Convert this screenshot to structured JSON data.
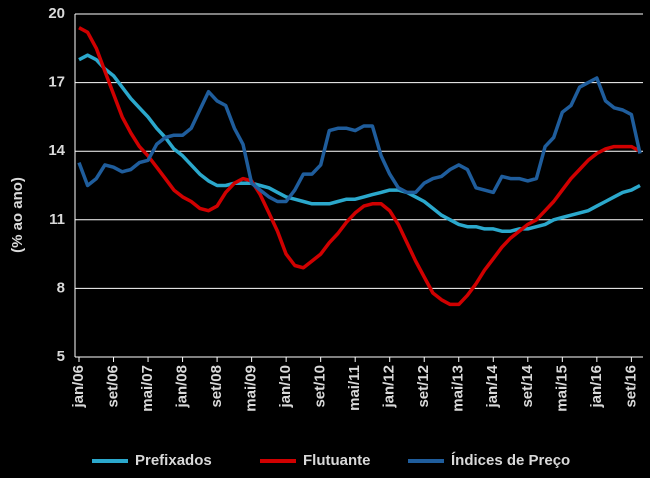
{
  "chart_data": {
    "type": "line",
    "y_label": "(% ao ano)",
    "categories": [
      "jan/06",
      null,
      null,
      null,
      "set/06",
      null,
      null,
      null,
      "mai/07",
      null,
      null,
      null,
      "jan/08",
      null,
      null,
      null,
      "set/08",
      null,
      null,
      null,
      "mai/09",
      null,
      null,
      null,
      "jan/10",
      null,
      null,
      null,
      "set/10",
      null,
      null,
      null,
      "mai/11",
      null,
      null,
      null,
      "jan/12",
      null,
      null,
      null,
      "set/12",
      null,
      null,
      null,
      "mai/13",
      null,
      null,
      null,
      "jan/14",
      null,
      null,
      null,
      "set/14",
      null,
      null,
      null,
      "mai/15",
      null,
      null,
      null,
      "jan/16",
      null,
      null,
      null,
      "set/16",
      null
    ],
    "series": [
      {
        "name": "Prefixados",
        "color": "#2ba8cc",
        "values": [
          18.0,
          18.2,
          18.0,
          17.6,
          17.3,
          16.8,
          16.3,
          15.9,
          15.5,
          15.0,
          14.6,
          14.1,
          13.8,
          13.4,
          13.0,
          12.7,
          12.5,
          12.5,
          12.6,
          12.6,
          12.6,
          12.5,
          12.4,
          12.2,
          12.0,
          11.9,
          11.8,
          11.7,
          11.7,
          11.7,
          11.8,
          11.9,
          11.9,
          12.0,
          12.1,
          12.2,
          12.3,
          12.3,
          12.2,
          12.0,
          11.8,
          11.5,
          11.2,
          11.0,
          10.8,
          10.7,
          10.7,
          10.6,
          10.6,
          10.5,
          10.5,
          10.6,
          10.6,
          10.7,
          10.8,
          11.0,
          11.1,
          11.2,
          11.3,
          11.4,
          11.6,
          11.8,
          12.0,
          12.2,
          12.3,
          12.5
        ]
      },
      {
        "name": "Flutuante",
        "color": "#d00000",
        "values": [
          19.4,
          19.2,
          18.5,
          17.5,
          16.5,
          15.5,
          14.8,
          14.2,
          13.8,
          13.3,
          12.8,
          12.3,
          12.0,
          11.8,
          11.5,
          11.4,
          11.6,
          12.2,
          12.6,
          12.8,
          12.7,
          12.1,
          11.3,
          10.5,
          9.5,
          9.0,
          8.9,
          9.2,
          9.5,
          10.0,
          10.4,
          10.9,
          11.3,
          11.6,
          11.7,
          11.7,
          11.4,
          10.8,
          10.0,
          9.2,
          8.5,
          7.8,
          7.5,
          7.3,
          7.3,
          7.7,
          8.2,
          8.8,
          9.3,
          9.8,
          10.2,
          10.5,
          10.8,
          11.0,
          11.4,
          11.8,
          12.3,
          12.8,
          13.2,
          13.6,
          13.9,
          14.1,
          14.2,
          14.2,
          14.2,
          14.0
        ]
      },
      {
        "name": "Índices de Preço",
        "color": "#1f5d9c",
        "values": [
          13.5,
          12.5,
          12.8,
          13.4,
          13.3,
          13.1,
          13.2,
          13.5,
          13.6,
          14.3,
          14.6,
          14.7,
          14.7,
          15.0,
          15.8,
          16.6,
          16.2,
          16.0,
          15.0,
          14.3,
          12.6,
          12.3,
          12.0,
          11.8,
          11.8,
          12.3,
          13.0,
          13.0,
          13.4,
          14.9,
          15.0,
          15.0,
          14.9,
          15.1,
          15.1,
          13.8,
          13.0,
          12.4,
          12.2,
          12.2,
          12.6,
          12.8,
          12.9,
          13.2,
          13.4,
          13.2,
          12.4,
          12.3,
          12.2,
          12.9,
          12.8,
          12.8,
          12.7,
          12.8,
          14.2,
          14.6,
          15.7,
          16.0,
          16.8,
          17.0,
          17.2,
          16.2,
          15.9,
          15.8,
          15.6,
          13.9
        ]
      }
    ],
    "ylim": [
      5,
      20
    ],
    "yticks": [
      5,
      8,
      11,
      14,
      17,
      20
    ],
    "grid": true
  }
}
